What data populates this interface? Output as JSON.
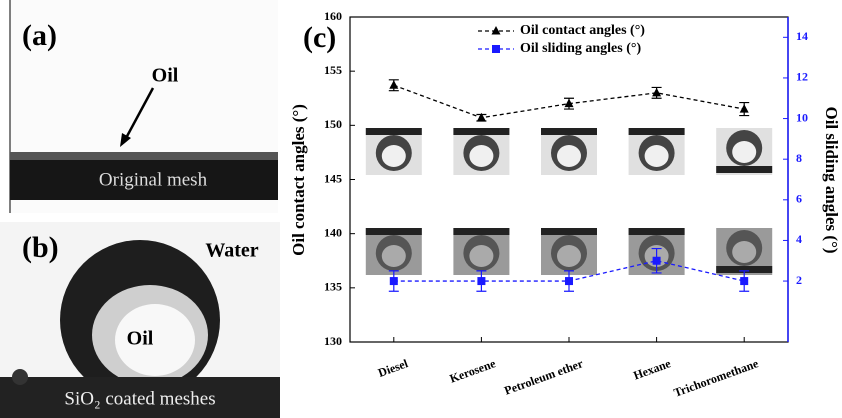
{
  "panels": {
    "a": {
      "label": "(a)",
      "arrow_text": "Oil",
      "caption": "Original mesh"
    },
    "b": {
      "label": "(b)",
      "water_text": "Water",
      "oil_text": "Oil",
      "caption": "SiO₂ coated meshes"
    },
    "c": {
      "label": "(c)"
    }
  },
  "chart_data": {
    "type": "line",
    "categories": [
      "Diesel",
      "Kerosene",
      "Petroleum ether",
      "Hexane",
      "Trichoromethane"
    ],
    "ylabel": "Oil contact angles (°)",
    "y2label": "Oil sliding angles (°)",
    "ylim": [
      130,
      160
    ],
    "yticks": [
      130,
      135,
      140,
      145,
      150,
      155,
      160
    ],
    "y2lim": [
      -1,
      15
    ],
    "y2ticks": [
      2,
      4,
      6,
      8,
      10,
      12,
      14
    ],
    "legend": "top",
    "series": [
      {
        "name": "Oil contact angles (°)",
        "color": "#000000",
        "marker": "triangle",
        "axis": "y",
        "values": [
          153.7,
          150.7,
          152.0,
          153.0,
          151.5
        ],
        "errors": [
          0.5,
          0.3,
          0.5,
          0.5,
          0.6
        ]
      },
      {
        "name": "Oil sliding angles (°)",
        "color": "#1a1aff",
        "marker": "square",
        "axis": "y2",
        "values": [
          2,
          2,
          2,
          3,
          2
        ],
        "errors": [
          0.5,
          0.5,
          0.5,
          0.6,
          0.5
        ]
      }
    ]
  }
}
